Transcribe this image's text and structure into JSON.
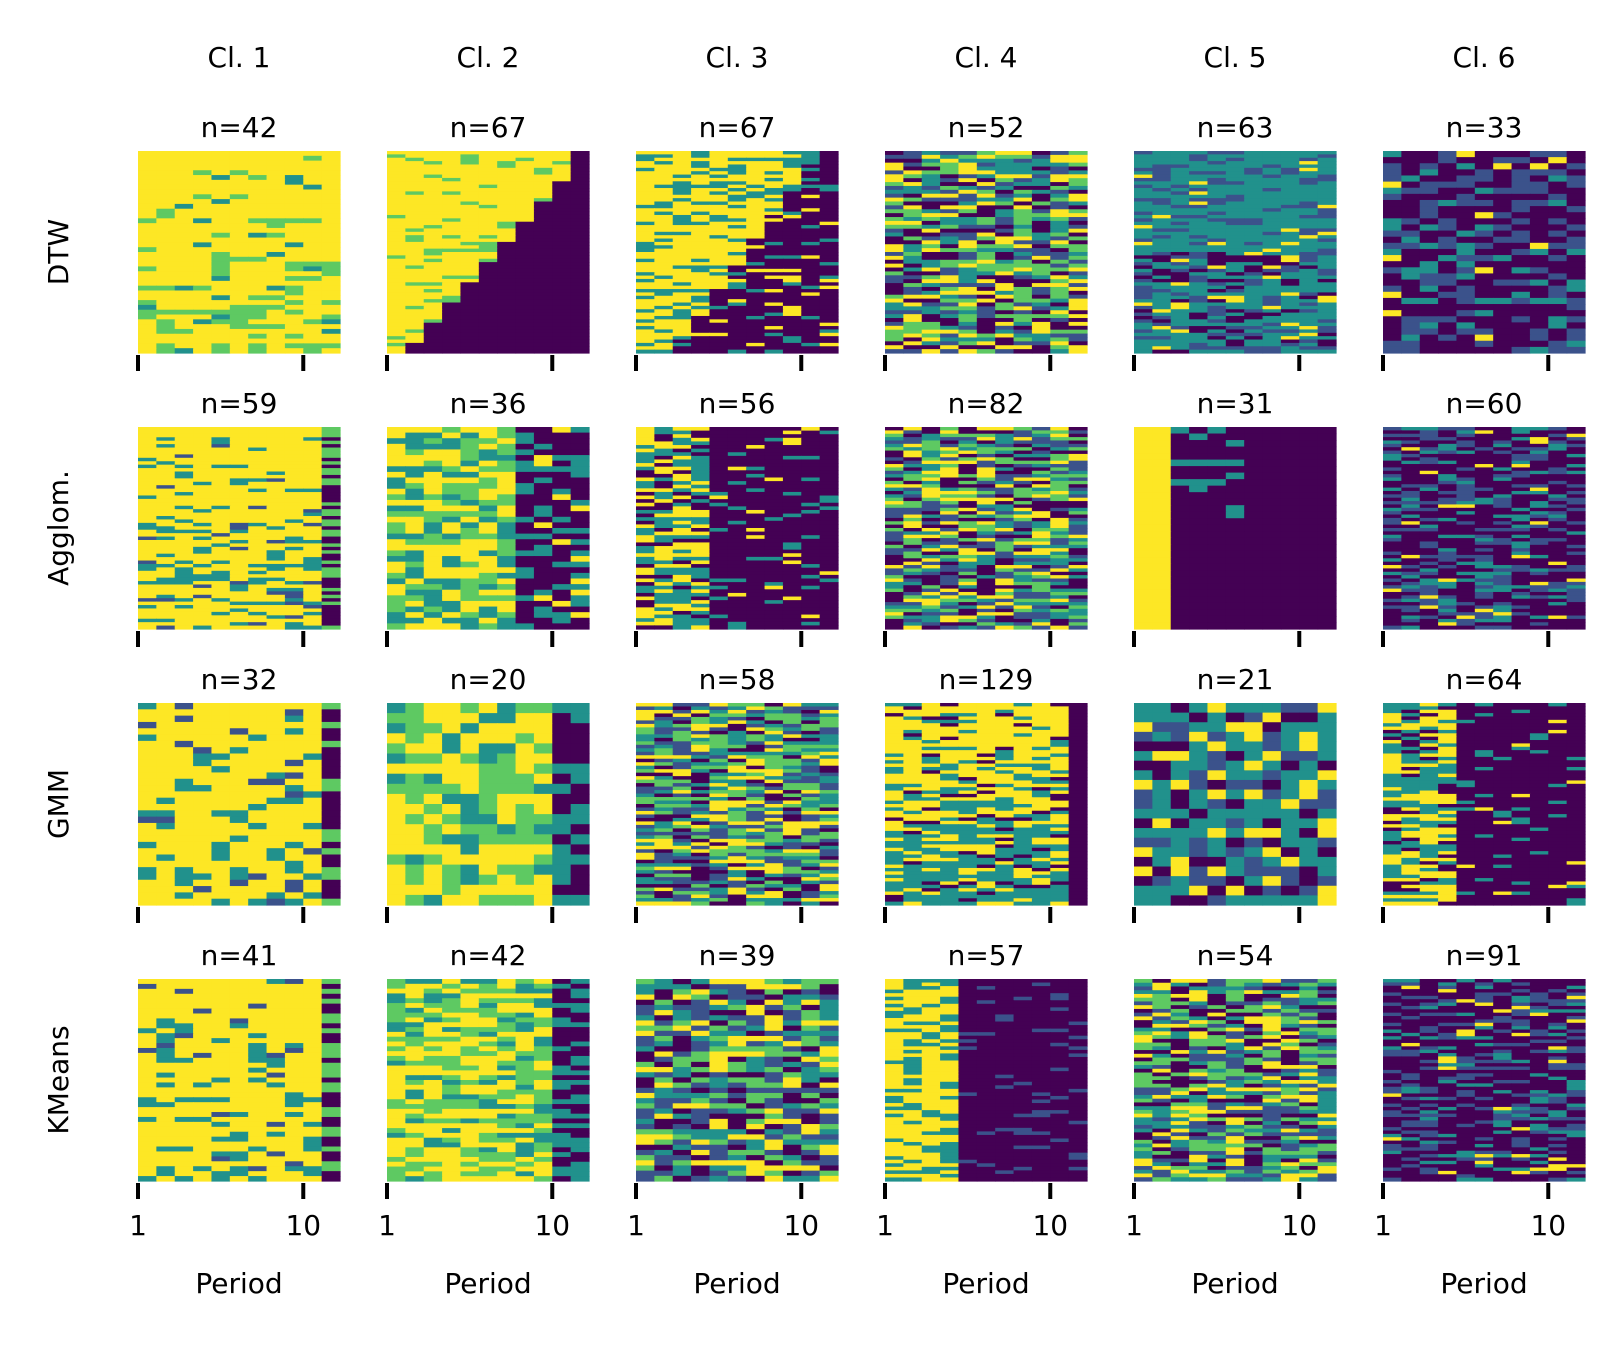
{
  "figure": {
    "column_headers": [
      "Cl. 1",
      "Cl. 2",
      "Cl. 3",
      "Cl. 4",
      "Cl. 5",
      "Cl. 6"
    ],
    "row_labels": [
      "DTW",
      "Agglom.",
      "GMM",
      "KMeans"
    ],
    "x_tick_labels": [
      "1",
      "10"
    ],
    "x_axis_label": "Period",
    "colormap": [
      "#440154",
      "#3b528b",
      "#21918c",
      "#5ec962",
      "#fde725"
    ]
  },
  "chart_data": {
    "type": "heatmap",
    "description_values": "Each panel shows cluster member trajectories (rows) across 11 periods; cell value in [0,1] mapped to viridis. Counts are per-panel sample sizes.",
    "x": [
      1,
      2,
      3,
      4,
      5,
      6,
      7,
      8,
      9,
      10,
      11
    ],
    "xticks": [
      1,
      10
    ],
    "xlabel": "Period",
    "methods": [
      "DTW",
      "Agglom.",
      "GMM",
      "KMeans"
    ],
    "clusters": [
      "Cl. 1",
      "Cl. 2",
      "Cl. 3",
      "Cl. 4",
      "Cl. 5",
      "Cl. 6"
    ],
    "counts": {
      "DTW": [
        "n=42",
        "n=67",
        "n=67",
        "n=52",
        "n=63",
        "n=33"
      ],
      "Agglom.": [
        "n=59",
        "n=36",
        "n=56",
        "n=82",
        "n=31",
        "n=60"
      ],
      "GMM": [
        "n=32",
        "n=20",
        "n=58",
        "n=129",
        "n=21",
        "n=64"
      ],
      "KMeans": [
        "n=41",
        "n=42",
        "n=39",
        "n=57",
        "n=54",
        "n=91"
      ]
    },
    "patterns": {
      "DTW": [
        "high_stable",
        "diagonal_drop",
        "diagonal_drop_noisy",
        "mixed_random",
        "mid_fade",
        "low_stable"
      ],
      "Agglom.": [
        "high_end_drop",
        "mid_late_drop",
        "early_drop_at_4",
        "mixed_random",
        "very_early_drop",
        "low_stable"
      ],
      "GMM": [
        "high_end_drop",
        "high_mid_late_drop",
        "mixed_random",
        "high_fade_end_drop",
        "blocky_mixed",
        "early_drop_at_4"
      ],
      "KMeans": [
        "high_end_drop",
        "high_mid_late_drop",
        "mixed_random",
        "drop_at_4",
        "mixed_random",
        "low_stable"
      ]
    }
  }
}
